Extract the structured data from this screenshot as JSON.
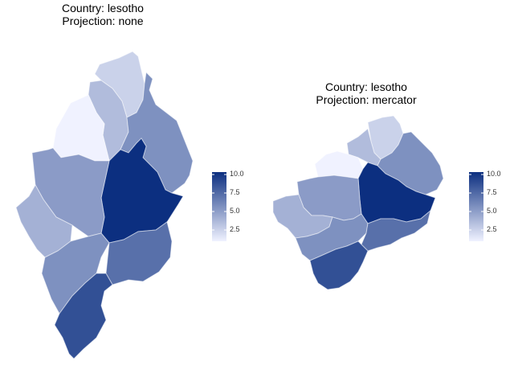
{
  "maps": [
    {
      "title_line1": "Country: lesotho",
      "title_line2": "Projection: none"
    },
    {
      "title_line1": "Country: lesotho",
      "title_line2": "Projection: mercator"
    }
  ],
  "legend": {
    "ticks": [
      "10.0",
      "7.5",
      "5.0",
      "2.5"
    ],
    "range": [
      1,
      10
    ],
    "color_low": "#f0f2ff",
    "color_high": "#0c2f80"
  },
  "districts": [
    {
      "value": 2.5
    },
    {
      "value": 3.5
    },
    {
      "value": 5.5
    },
    {
      "value": 1.0
    },
    {
      "value": 10.0
    },
    {
      "value": 5.0
    },
    {
      "value": 4.0
    },
    {
      "value": 5.5
    },
    {
      "value": 7.0
    },
    {
      "value": 8.5
    }
  ]
}
